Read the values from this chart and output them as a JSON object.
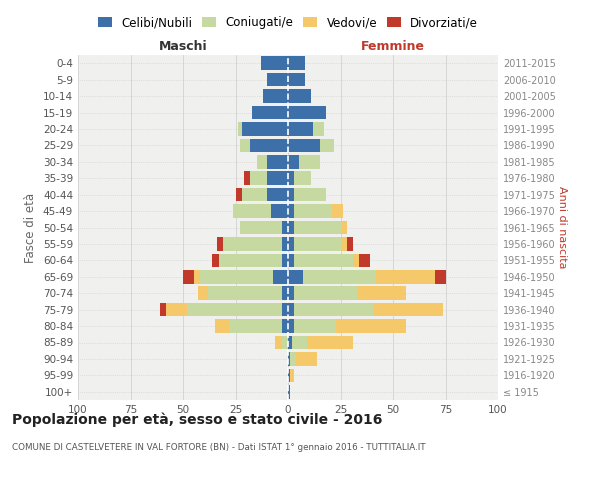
{
  "age_groups": [
    "100+",
    "95-99",
    "90-94",
    "85-89",
    "80-84",
    "75-79",
    "70-74",
    "65-69",
    "60-64",
    "55-59",
    "50-54",
    "45-49",
    "40-44",
    "35-39",
    "30-34",
    "25-29",
    "20-24",
    "15-19",
    "10-14",
    "5-9",
    "0-4"
  ],
  "birth_years": [
    "≤ 1915",
    "1916-1920",
    "1921-1925",
    "1926-1930",
    "1931-1935",
    "1936-1940",
    "1941-1945",
    "1946-1950",
    "1951-1955",
    "1956-1960",
    "1961-1965",
    "1966-1970",
    "1971-1975",
    "1976-1980",
    "1981-1985",
    "1986-1990",
    "1991-1995",
    "1996-2000",
    "2001-2005",
    "2006-2010",
    "2011-2015"
  ],
  "male": {
    "celibe": [
      0,
      0,
      0,
      0,
      3,
      3,
      3,
      7,
      3,
      3,
      3,
      8,
      10,
      10,
      10,
      18,
      22,
      17,
      12,
      10,
      13
    ],
    "coniugato": [
      0,
      0,
      0,
      3,
      25,
      45,
      35,
      35,
      30,
      28,
      20,
      18,
      12,
      8,
      5,
      5,
      2,
      0,
      0,
      0,
      0
    ],
    "vedovo": [
      0,
      0,
      0,
      3,
      7,
      10,
      5,
      3,
      0,
      0,
      0,
      0,
      0,
      0,
      0,
      0,
      0,
      0,
      0,
      0,
      0
    ],
    "divorziato": [
      0,
      0,
      0,
      0,
      0,
      3,
      0,
      5,
      3,
      3,
      0,
      0,
      3,
      3,
      0,
      0,
      0,
      0,
      0,
      0,
      0
    ]
  },
  "female": {
    "nubile": [
      1,
      1,
      1,
      2,
      3,
      3,
      3,
      7,
      3,
      3,
      3,
      3,
      3,
      3,
      5,
      15,
      12,
      18,
      11,
      8,
      8
    ],
    "coniugata": [
      0,
      0,
      3,
      7,
      20,
      38,
      30,
      35,
      28,
      22,
      22,
      18,
      15,
      8,
      10,
      7,
      5,
      0,
      0,
      0,
      0
    ],
    "vedova": [
      0,
      2,
      10,
      22,
      33,
      33,
      23,
      28,
      3,
      3,
      3,
      5,
      0,
      0,
      0,
      0,
      0,
      0,
      0,
      0,
      0
    ],
    "divorziata": [
      0,
      0,
      0,
      0,
      0,
      0,
      0,
      5,
      5,
      3,
      0,
      0,
      0,
      0,
      0,
      0,
      0,
      0,
      0,
      0,
      0
    ]
  },
  "colors": {
    "celibe": "#3d6fa8",
    "coniugato": "#c5d9a0",
    "vedovo": "#f5c96a",
    "divorziato": "#c0392b"
  },
  "legend_labels": [
    "Celibi/Nubili",
    "Coniugati/e",
    "Vedovi/e",
    "Divorziati/e"
  ],
  "xlim": 100,
  "title": "Popolazione per età, sesso e stato civile - 2016",
  "subtitle": "COMUNE DI CASTELVETERE IN VAL FORTORE (BN) - Dati ISTAT 1° gennaio 2016 - TUTTITALIA.IT",
  "ylabel_left": "Fasce di età",
  "ylabel_right": "Anni di nascita",
  "xlabel_left": "Maschi",
  "xlabel_right": "Femmine",
  "bg_color": "#ffffff",
  "plot_bg": "#f0f0ee",
  "grid_color": "#cccccc",
  "bar_height": 0.82
}
